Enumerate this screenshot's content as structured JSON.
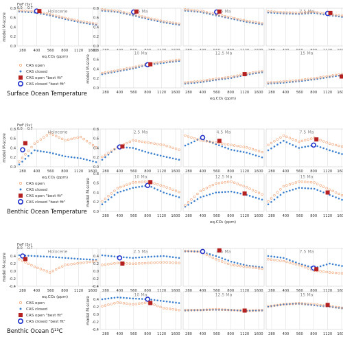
{
  "colors": {
    "open": "#f0a070",
    "closed": "#3a7fcf",
    "open_best_fill": "#b52020",
    "open_best_edge": "#b52020",
    "closed_best_edge": "#2233cc",
    "grid": "#e0e0e0",
    "text": "#333333"
  },
  "common": {
    "xticks": [
      "280",
      "400",
      "560",
      "800",
      "1120",
      "1600"
    ],
    "xlabel": "eq.CO₂ (ppm)",
    "ylabel": "model M-score",
    "fwf_label": "FwF (Sv)",
    "fwf_ticks": [
      "0.0",
      "0.7"
    ],
    "legend": [
      "CAS open",
      "CAS closed",
      "CAS open \"best fit\"",
      "CAS closed \"best fit\""
    ]
  },
  "chart_data": [
    {
      "type": "scatter",
      "title": "Surface Ocean Temperature",
      "ylim": [
        0,
        0.8
      ],
      "yticks": [
        "0.0",
        "0.2",
        "0.4",
        "0.6",
        "0.8"
      ],
      "panels": [
        {
          "title": "Holocene",
          "open": [
            0.74,
            0.72,
            0.66,
            0.58,
            0.51,
            0.46
          ],
          "closed": [
            0.73,
            0.71,
            0.65,
            0.57,
            0.5,
            0.45
          ],
          "best_open": [
            1,
            0.74
          ],
          "best_closed": [
            1,
            0.74
          ]
        },
        {
          "title": "2.5 Ma",
          "open": [
            0.76,
            0.73,
            0.66,
            0.58,
            0.51,
            0.46
          ],
          "closed": [
            0.75,
            0.72,
            0.65,
            0.57,
            0.5,
            0.45
          ],
          "best_open": [
            2,
            0.73
          ],
          "best_closed": [
            2,
            0.72
          ]
        },
        {
          "title": "4.5 Ma",
          "open": [
            0.76,
            0.73,
            0.66,
            0.59,
            0.52,
            0.47
          ],
          "closed": [
            0.75,
            0.72,
            0.65,
            0.58,
            0.51,
            0.46
          ],
          "best_open": [
            2,
            0.73
          ],
          "best_closed": [
            2,
            0.72
          ]
        },
        {
          "title": "7.5 Ma",
          "open": [
            0.72,
            0.7,
            0.69,
            0.71,
            0.66,
            0.62
          ],
          "closed": [
            0.71,
            0.69,
            0.68,
            0.7,
            0.65,
            0.61
          ],
          "best_open": [
            4,
            0.7
          ],
          "best_closed": [
            4,
            0.69
          ]
        },
        {
          "title": "10 Ma",
          "open": [
            0.3,
            0.36,
            0.42,
            0.5,
            0.54,
            0.58
          ],
          "closed": [
            0.29,
            0.35,
            0.41,
            0.49,
            0.53,
            0.57
          ],
          "best_open": [
            3,
            0.5
          ],
          "best_closed": [
            3,
            0.49
          ]
        },
        {
          "title": "12.5 Ma",
          "open": [
            0.1,
            0.13,
            0.18,
            0.22,
            0.29,
            0.34
          ],
          "closed": [
            0.09,
            0.12,
            0.17,
            0.21,
            0.28,
            0.33
          ],
          "best_open": [
            4,
            0.29
          ],
          "best_closed": null
        },
        {
          "title": "15 Ma",
          "open": [
            0.1,
            0.12,
            0.15,
            0.19,
            0.24,
            0.29
          ],
          "closed": [
            0.09,
            0.11,
            0.14,
            0.18,
            0.23,
            0.28
          ],
          "best_open": [
            5,
            0.24
          ],
          "best_closed": null
        }
      ]
    },
    {
      "type": "scatter",
      "title": "Benthic Ocean Temperature",
      "ylim": [
        0,
        0.8
      ],
      "yticks": [
        "0.0",
        "0.2",
        "0.4",
        "0.6",
        "0.8"
      ],
      "panels": [
        {
          "title": "Holocene",
          "open": [
            0.1,
            0.48,
            0.7,
            0.55,
            0.62,
            0.4
          ],
          "closed": [
            0.05,
            0.35,
            0.3,
            0.22,
            0.18,
            0.1
          ],
          "best_open": [
            0,
            0.5
          ],
          "best_closed": [
            0,
            0.36
          ]
        },
        {
          "title": "2.5 Ma",
          "open": [
            0.2,
            0.4,
            0.55,
            0.5,
            0.45,
            0.35
          ],
          "closed": [
            0.15,
            0.42,
            0.4,
            0.3,
            0.22,
            0.15
          ],
          "best_open": [
            1,
            0.43
          ],
          "best_closed": [
            1,
            0.42
          ]
        },
        {
          "title": "4.5 Ma",
          "open": [
            0.65,
            0.55,
            0.5,
            0.45,
            0.4,
            0.3
          ],
          "closed": [
            0.45,
            0.6,
            0.48,
            0.36,
            0.3,
            0.2
          ],
          "best_open": [
            2,
            0.55
          ],
          "best_closed": [
            1,
            0.62
          ]
        },
        {
          "title": "7.5 Ma",
          "open": [
            0.45,
            0.65,
            0.52,
            0.6,
            0.48,
            0.4
          ],
          "closed": [
            0.35,
            0.55,
            0.4,
            0.46,
            0.35,
            0.25
          ],
          "best_open": [
            3,
            0.58
          ],
          "best_closed": [
            3,
            0.46
          ]
        },
        {
          "title": "10 Ma",
          "open": [
            0.2,
            0.48,
            0.6,
            0.62,
            0.52,
            0.4
          ],
          "closed": [
            0.15,
            0.4,
            0.5,
            0.55,
            0.4,
            0.3
          ],
          "best_open": [
            3,
            0.62
          ],
          "best_closed": [
            3,
            0.55
          ]
        },
        {
          "title": "12.5 Ma",
          "open": [
            0.12,
            0.42,
            0.58,
            0.62,
            0.5,
            0.35
          ],
          "closed": [
            0.1,
            0.3,
            0.4,
            0.42,
            0.35,
            0.25
          ],
          "best_open": [
            4,
            0.38
          ],
          "best_closed": null
        },
        {
          "title": "15 Ma",
          "open": [
            0.2,
            0.52,
            0.62,
            0.6,
            0.45,
            0.3
          ],
          "closed": [
            0.15,
            0.4,
            0.5,
            0.48,
            0.35,
            0.22
          ],
          "best_open": [
            4,
            0.4
          ],
          "best_closed": null
        }
      ]
    },
    {
      "type": "scatter",
      "title": "Benthic Ocean δ¹³C",
      "ylim": [
        -0.4,
        0.6
      ],
      "yticks": [
        "-0.4",
        "-0.2",
        "0.0",
        "0.2",
        "0.4"
      ],
      "panels": [
        {
          "title": "Holocene",
          "open": [
            0.3,
            0.1,
            -0.05,
            0.15,
            0.2,
            0.25
          ],
          "closed": [
            0.42,
            0.4,
            0.38,
            0.35,
            0.32,
            0.3
          ],
          "best_open": [
            0,
            0.32
          ],
          "best_closed": [
            0,
            0.4
          ]
        },
        {
          "title": "2.5 Ma",
          "open": [
            0.15,
            0.2,
            0.18,
            0.2,
            0.22,
            0.2
          ],
          "closed": [
            0.42,
            0.38,
            0.35,
            0.38,
            0.4,
            0.35
          ],
          "best_open": [
            1,
            0.2
          ],
          "best_closed": [
            1,
            0.35
          ]
        },
        {
          "title": "4.5 Ma",
          "open": [
            0.52,
            0.5,
            0.3,
            0.15,
            0.1,
            0.05
          ],
          "closed": [
            0.52,
            0.52,
            0.4,
            0.25,
            0.15,
            0.1
          ],
          "best_open": [
            2,
            0.55
          ],
          "best_closed": [
            1,
            0.52
          ]
        },
        {
          "title": "7.5 Ma",
          "open": [
            0.3,
            0.25,
            0.15,
            0.0,
            -0.05,
            -0.08
          ],
          "closed": [
            0.4,
            0.35,
            0.2,
            0.08,
            0.2,
            0.12
          ],
          "best_open": [
            3,
            0.05
          ],
          "best_closed": [
            3,
            0.08
          ]
        },
        {
          "title": "10 Ma",
          "open": [
            0.2,
            0.3,
            0.25,
            0.3,
            0.15,
            0.1
          ],
          "closed": [
            0.4,
            0.45,
            0.42,
            0.4,
            0.35,
            0.3
          ],
          "best_open": [
            3,
            0.3
          ],
          "best_closed": [
            3,
            0.4
          ]
        },
        {
          "title": "12.5 Ma",
          "open": [
            0.1,
            0.1,
            0.12,
            0.1,
            0.08,
            0.1
          ],
          "closed": [
            0.1,
            0.11,
            0.12,
            0.11,
            0.09,
            0.1
          ],
          "best_open": [
            4,
            0.1
          ],
          "best_closed": null
        },
        {
          "title": "15 Ma",
          "open": [
            0.2,
            0.25,
            0.28,
            0.25,
            0.2,
            0.15
          ],
          "closed": [
            0.2,
            0.26,
            0.28,
            0.24,
            0.2,
            0.15
          ],
          "best_open": [
            4,
            0.25
          ],
          "best_closed": null
        }
      ]
    }
  ]
}
